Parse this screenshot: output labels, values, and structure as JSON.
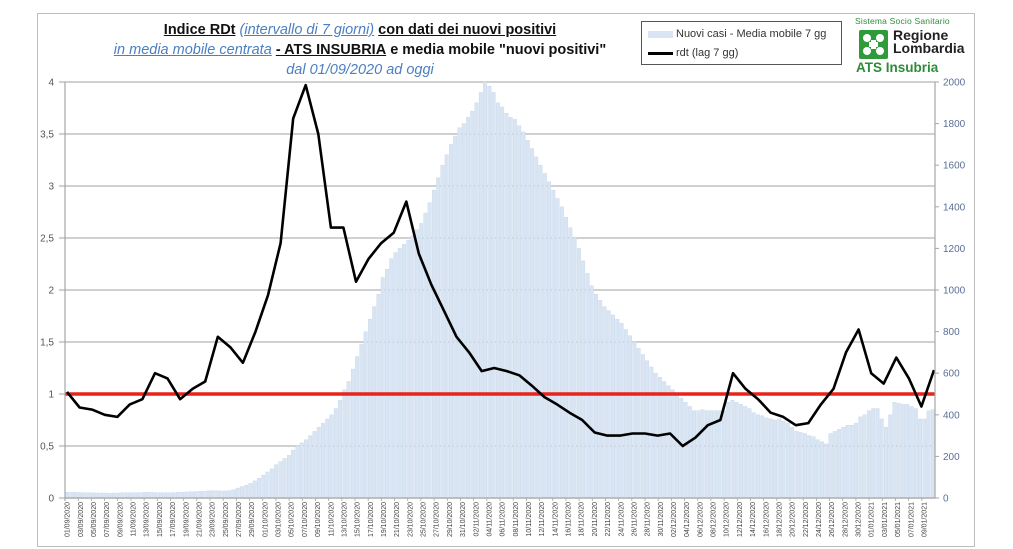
{
  "title": {
    "line1_bold_a": "Indice RDt",
    "line1_italic": "(intervallo di 7 giorni)",
    "line1_bold_b": "con dati dei nuovi positivi",
    "line2_italic": "in media mobile centrata",
    "line2_bold_a": "- ATS INSUBRIA",
    "line2_rest": "e media mobile \"nuovi positivi\"",
    "line3_italic": "dal 01/09/2020 ad oggi"
  },
  "legend": {
    "bar_label": "Nuovi casi - Media mobile 7 gg",
    "line_label": "rdt (lag 7 gg)"
  },
  "logo": {
    "top_text": "Sistema Socio Sanitario",
    "name_line1": "Regione",
    "name_line2": "Lombardia",
    "subtitle": "ATS Insubria"
  },
  "colors": {
    "bars": "#d9e5f3",
    "bar_edge": "#c5d5ea",
    "rdt_line": "#000000",
    "threshold_line": "#e8231c",
    "grid": "#b3b3b3",
    "logo_green": "#2f9a3a"
  },
  "chart_data": {
    "type": "bar+line",
    "title": "Indice RDt (intervallo di 7 giorni) con dati dei nuovi positivi in media mobile centrata - ATS INSUBRIA e media mobile \"nuovi positivi\" dal 01/09/2020 ad oggi",
    "xlabel": "",
    "ylabel_left": "",
    "ylabel_right": "",
    "ylim_left": [
      0,
      4
    ],
    "ylim_right": [
      0,
      2000
    ],
    "yticks_left": [
      "0",
      "0,5",
      "1",
      "1,5",
      "2",
      "2,5",
      "3",
      "3,5",
      "4"
    ],
    "yticks_right": [
      "0",
      "200",
      "400",
      "600",
      "800",
      "1000",
      "1200",
      "1400",
      "1600",
      "1800",
      "2000"
    ],
    "grid": true,
    "legend_position": "top-right",
    "threshold": 1.0,
    "x_labels": [
      "01/09/2020",
      "03/09/2020",
      "05/09/2020",
      "07/09/2020",
      "09/09/2020",
      "11/09/2020",
      "13/09/2020",
      "15/09/2020",
      "17/09/2020",
      "19/09/2020",
      "21/09/2020",
      "23/09/2020",
      "25/09/2020",
      "27/09/2020",
      "29/09/2020",
      "01/10/2020",
      "03/10/2020",
      "05/10/2020",
      "07/10/2020",
      "09/10/2020",
      "11/10/2020",
      "13/10/2020",
      "15/10/2020",
      "17/10/2020",
      "19/10/2020",
      "21/10/2020",
      "23/10/2020",
      "25/10/2020",
      "27/10/2020",
      "29/10/2020",
      "31/10/2020",
      "02/11/2020",
      "04/11/2020",
      "06/11/2020",
      "08/11/2020",
      "10/11/2020",
      "12/11/2020",
      "14/11/2020",
      "16/11/2020",
      "18/11/2020",
      "20/11/2020",
      "22/11/2020",
      "24/11/2020",
      "26/11/2020",
      "28/11/2020",
      "30/11/2020",
      "02/12/2020",
      "04/12/2020",
      "06/12/2020",
      "08/12/2020",
      "10/12/2020",
      "12/12/2020",
      "14/12/2020",
      "16/12/2020",
      "18/12/2020",
      "20/12/2020",
      "22/12/2020",
      "24/12/2020",
      "26/12/2020",
      "28/12/2020",
      "30/12/2020",
      "01/01/2021",
      "03/01/2021",
      "05/01/2021",
      "07/01/2021",
      "09/01/2021"
    ],
    "series": [
      {
        "name": "Nuovi casi - Media mobile 7 gg",
        "type": "bar",
        "axis": "right",
        "values": [
          28,
          27,
          27,
          26,
          26,
          25,
          25,
          24,
          24,
          24,
          23,
          24,
          24,
          25,
          25,
          26,
          26,
          26,
          27,
          27,
          27,
          26,
          26,
          25,
          25,
          26,
          27,
          28,
          29,
          30,
          30,
          32,
          33,
          34,
          35,
          35,
          34,
          34,
          35,
          40,
          48,
          55,
          62,
          70,
          82,
          95,
          110,
          125,
          140,
          160,
          175,
          190,
          205,
          230,
          250,
          265,
          280,
          300,
          320,
          340,
          360,
          380,
          400,
          430,
          470,
          520,
          560,
          620,
          680,
          740,
          800,
          860,
          920,
          980,
          1060,
          1100,
          1150,
          1180,
          1200,
          1220,
          1240,
          1260,
          1290,
          1320,
          1370,
          1420,
          1480,
          1540,
          1600,
          1650,
          1700,
          1740,
          1780,
          1800,
          1830,
          1860,
          1900,
          1950,
          2000,
          1980,
          1950,
          1900,
          1880,
          1850,
          1830,
          1820,
          1790,
          1760,
          1720,
          1680,
          1640,
          1600,
          1560,
          1520,
          1480,
          1440,
          1400,
          1350,
          1300,
          1250,
          1200,
          1140,
          1080,
          1020,
          980,
          950,
          920,
          900,
          880,
          860,
          840,
          810,
          780,
          750,
          720,
          690,
          660,
          630,
          600,
          580,
          560,
          540,
          520,
          500,
          480,
          460,
          440,
          420,
          420,
          425,
          420,
          420,
          420,
          420,
          420,
          460,
          470,
          460,
          450,
          440,
          430,
          410,
          400,
          395,
          385,
          380,
          375,
          380,
          370,
          360,
          340,
          320,
          315,
          310,
          300,
          295,
          280,
          270,
          260,
          310,
          320,
          330,
          340,
          350,
          350,
          360,
          390,
          400,
          420,
          430,
          430,
          380,
          340,
          400,
          460,
          455,
          450,
          450,
          440,
          430,
          380,
          380,
          420,
          425
        ]
      },
      {
        "name": "rdt (lag 7 gg)",
        "type": "line",
        "axis": "left",
        "values": [
          1.02,
          0.87,
          0.85,
          0.8,
          0.78,
          0.9,
          0.95,
          1.2,
          1.15,
          0.95,
          1.05,
          1.12,
          1.55,
          1.45,
          1.3,
          1.6,
          1.95,
          2.45,
          3.65,
          3.97,
          3.5,
          2.6,
          2.6,
          2.08,
          2.3,
          2.45,
          2.55,
          2.85,
          2.35,
          2.05,
          1.8,
          1.55,
          1.4,
          1.22,
          1.25,
          1.22,
          1.18,
          1.08,
          0.97,
          0.9,
          0.82,
          0.75,
          0.63,
          0.6,
          0.6,
          0.62,
          0.62,
          0.6,
          0.62,
          0.5,
          0.58,
          0.7,
          0.75,
          1.2,
          1.05,
          0.95,
          0.82,
          0.78,
          0.7,
          0.72,
          0.9,
          1.05,
          1.4,
          1.62,
          1.2,
          1.1,
          1.35,
          1.15,
          0.88,
          1.23
        ]
      }
    ]
  }
}
